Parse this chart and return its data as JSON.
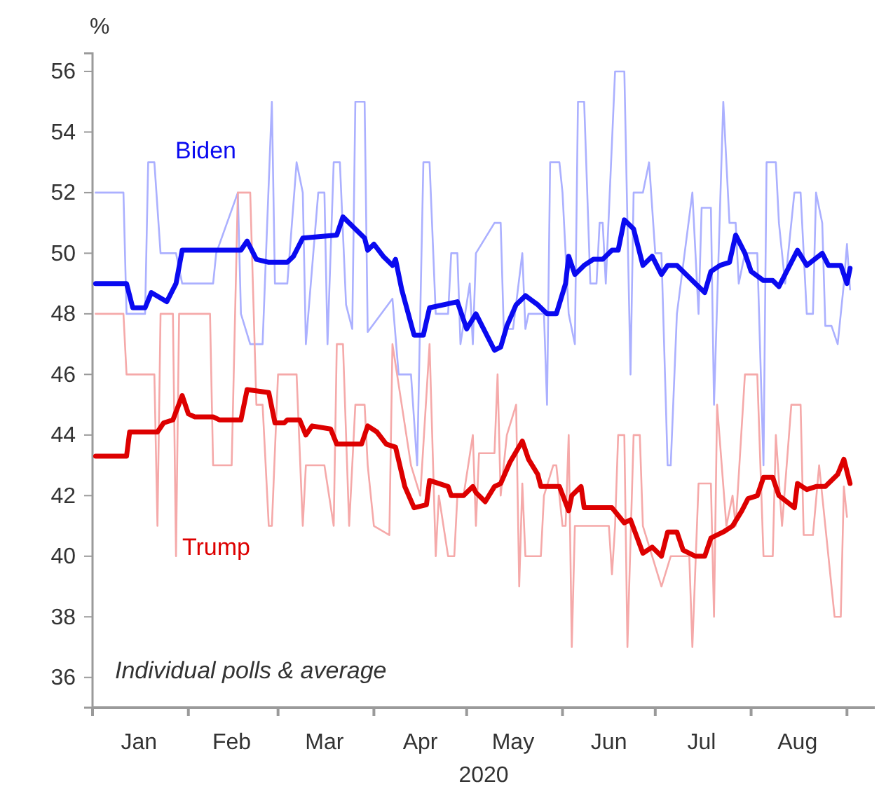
{
  "chart_data": {
    "type": "line",
    "ylabel": "%",
    "xlabel": "2020",
    "annotations": [
      "Individual polls & average"
    ],
    "legend": false,
    "grid": false,
    "marker": "none",
    "line_style": "solid",
    "xlim": [
      "2020-01-01",
      "2020-09-10"
    ],
    "xticks": [
      {
        "value": "2020-01-01",
        "label": null
      },
      {
        "value": "2020-01-16",
        "label": "Jan"
      },
      {
        "value": "2020-02-01",
        "label": null
      },
      {
        "value": "2020-02-15",
        "label": "Feb"
      },
      {
        "value": "2020-03-01",
        "label": null
      },
      {
        "value": "2020-03-16",
        "label": "Mar"
      },
      {
        "value": "2020-04-01",
        "label": null
      },
      {
        "value": "2020-04-16",
        "label": "Apr"
      },
      {
        "value": "2020-05-01",
        "label": null
      },
      {
        "value": "2020-05-16",
        "label": "May"
      },
      {
        "value": "2020-06-01",
        "label": null
      },
      {
        "value": "2020-06-16",
        "label": "Jun"
      },
      {
        "value": "2020-07-01",
        "label": null
      },
      {
        "value": "2020-07-16",
        "label": "Jul"
      },
      {
        "value": "2020-08-01",
        "label": null
      },
      {
        "value": "2020-08-16",
        "label": "Aug"
      },
      {
        "value": "2020-09-01",
        "label": null
      }
    ],
    "ylim": [
      35,
      56.6
    ],
    "yticks": [
      36,
      38,
      40,
      42,
      44,
      46,
      48,
      50,
      52,
      54,
      56
    ],
    "series": [
      {
        "color": "#abb0ff",
        "x": [
          "2020-01-02",
          "2020-01-11",
          "2020-01-12",
          "2020-01-18",
          "2020-01-19",
          "2020-01-21",
          "2020-01-23",
          "2020-01-28",
          "2020-01-30",
          "2020-02-09",
          "2020-02-10",
          "2020-02-17",
          "2020-02-18",
          "2020-02-21",
          "2020-02-25",
          "2020-02-28",
          "2020-02-29",
          "2020-03-04",
          "2020-03-07",
          "2020-03-09",
          "2020-03-10",
          "2020-03-14",
          "2020-03-16",
          "2020-03-17",
          "2020-03-19",
          "2020-03-21",
          "2020-03-23",
          "2020-03-25",
          "2020-03-26",
          "2020-03-29",
          "2020-03-30",
          "2020-04-07",
          "2020-04-09",
          "2020-04-13",
          "2020-04-15",
          "2020-04-17",
          "2020-04-19",
          "2020-04-21",
          "2020-04-25",
          "2020-04-26",
          "2020-04-28",
          "2020-04-29",
          "2020-05-02",
          "2020-05-03",
          "2020-05-04",
          "2020-05-10",
          "2020-05-12",
          "2020-05-13",
          "2020-05-16",
          "2020-05-19",
          "2020-05-20",
          "2020-05-21",
          "2020-05-26",
          "2020-05-27",
          "2020-05-28",
          "2020-05-31",
          "2020-06-01",
          "2020-06-03",
          "2020-06-05",
          "2020-06-06",
          "2020-06-08",
          "2020-06-10",
          "2020-06-12",
          "2020-06-13",
          "2020-06-14",
          "2020-06-15",
          "2020-06-18",
          "2020-06-21",
          "2020-06-23",
          "2020-06-24",
          "2020-06-27",
          "2020-06-29",
          "2020-07-01",
          "2020-07-03",
          "2020-07-05",
          "2020-07-06",
          "2020-07-08",
          "2020-07-13",
          "2020-07-15",
          "2020-07-16",
          "2020-07-19",
          "2020-07-20",
          "2020-07-23",
          "2020-07-25",
          "2020-07-27",
          "2020-07-28",
          "2020-07-30",
          "2020-08-03",
          "2020-08-05",
          "2020-08-06",
          "2020-08-09",
          "2020-08-10",
          "2020-08-12",
          "2020-08-15",
          "2020-08-17",
          "2020-08-19",
          "2020-08-21",
          "2020-08-22",
          "2020-08-24",
          "2020-08-25",
          "2020-08-27",
          "2020-08-29",
          "2020-08-31",
          "2020-09-01",
          "2020-09-02"
        ],
        "values": [
          52,
          52,
          48,
          48,
          53,
          53,
          50,
          50,
          49,
          49,
          50,
          52,
          48,
          47,
          47,
          55,
          49,
          49,
          53,
          52,
          47,
          52,
          52,
          47,
          53,
          53,
          48.3,
          47.5,
          55,
          55,
          47.4,
          48.5,
          46,
          46,
          43,
          53,
          53,
          48,
          48,
          50,
          50,
          47,
          49,
          47,
          50,
          51,
          51,
          47.5,
          47.5,
          50,
          47.5,
          48,
          48,
          45,
          53,
          53,
          52,
          48,
          47,
          55,
          55,
          49,
          49,
          51,
          51,
          49,
          56,
          56,
          46,
          52,
          52,
          53,
          50,
          50,
          43,
          43,
          48,
          52,
          48,
          51.5,
          51.5,
          45,
          55,
          51,
          51,
          49,
          50,
          50,
          43,
          53,
          53,
          51,
          49,
          52,
          52,
          48,
          48,
          52,
          51,
          47.6,
          47.6,
          47,
          49,
          50.3,
          48.8
        ]
      },
      {
        "color": "#f5a9a9",
        "x": [
          "2020-01-02",
          "2020-01-11",
          "2020-01-12",
          "2020-01-21",
          "2020-01-22",
          "2020-01-23",
          "2020-01-27",
          "2020-01-28",
          "2020-01-29",
          "2020-02-08",
          "2020-02-09",
          "2020-02-15",
          "2020-02-17",
          "2020-02-21",
          "2020-02-23",
          "2020-02-25",
          "2020-02-27",
          "2020-02-28",
          "2020-03-01",
          "2020-03-07",
          "2020-03-09",
          "2020-03-10",
          "2020-03-16",
          "2020-03-19",
          "2020-03-20",
          "2020-03-22",
          "2020-03-24",
          "2020-03-26",
          "2020-03-29",
          "2020-03-30",
          "2020-04-01",
          "2020-04-06",
          "2020-04-07",
          "2020-04-13",
          "2020-04-16",
          "2020-04-19",
          "2020-04-21",
          "2020-04-22",
          "2020-04-25",
          "2020-04-27",
          "2020-04-28",
          "2020-04-30",
          "2020-05-03",
          "2020-05-04",
          "2020-05-05",
          "2020-05-10",
          "2020-05-11",
          "2020-05-12",
          "2020-05-14",
          "2020-05-17",
          "2020-05-18",
          "2020-05-19",
          "2020-05-20",
          "2020-05-25",
          "2020-05-26",
          "2020-05-29",
          "2020-05-30",
          "2020-06-01",
          "2020-06-02",
          "2020-06-03",
          "2020-06-04",
          "2020-06-05",
          "2020-06-16",
          "2020-06-17",
          "2020-06-18",
          "2020-06-19",
          "2020-06-21",
          "2020-06-22",
          "2020-06-24",
          "2020-06-26",
          "2020-06-27",
          "2020-07-03",
          "2020-07-06",
          "2020-07-12",
          "2020-07-13",
          "2020-07-15",
          "2020-07-19",
          "2020-07-20",
          "2020-07-21",
          "2020-07-24",
          "2020-07-26",
          "2020-07-27",
          "2020-07-30",
          "2020-08-03",
          "2020-08-05",
          "2020-08-08",
          "2020-08-09",
          "2020-08-11",
          "2020-08-14",
          "2020-08-17",
          "2020-08-18",
          "2020-08-21",
          "2020-08-23",
          "2020-08-25",
          "2020-08-28",
          "2020-08-30",
          "2020-08-31",
          "2020-09-01"
        ],
        "values": [
          48,
          48,
          46,
          46,
          41,
          48,
          48,
          40,
          48,
          48,
          43,
          43,
          52,
          52,
          45,
          45,
          41,
          41,
          46,
          46,
          41,
          43,
          43,
          41,
          47,
          47,
          41,
          45,
          45,
          43,
          41,
          40.7,
          47,
          43,
          42,
          47,
          40,
          42,
          40,
          40,
          42,
          42,
          44,
          41,
          43.4,
          43.4,
          46,
          42,
          44,
          45,
          39,
          42.4,
          40,
          40,
          42,
          43,
          43,
          41,
          41,
          44,
          37,
          41,
          41,
          39.4,
          41,
          44,
          44,
          37,
          44,
          44,
          41,
          39,
          40,
          40,
          37,
          42.4,
          42.4,
          38,
          45,
          41,
          42,
          41,
          46,
          46,
          40,
          40,
          44,
          41,
          45,
          45,
          40.7,
          40.7,
          43,
          41,
          38,
          38,
          42.3,
          41.3
        ]
      },
      {
        "name": "Biden",
        "color": "#0a0af0",
        "x": [
          "2020-01-02",
          "2020-01-12",
          "2020-01-14",
          "2020-01-18",
          "2020-01-20",
          "2020-01-25",
          "2020-01-28",
          "2020-01-30",
          "2020-02-18",
          "2020-02-20",
          "2020-02-23",
          "2020-02-27",
          "2020-03-04",
          "2020-03-06",
          "2020-03-09",
          "2020-03-20",
          "2020-03-22",
          "2020-03-25",
          "2020-03-29",
          "2020-03-30",
          "2020-04-01",
          "2020-04-04",
          "2020-04-07",
          "2020-04-08",
          "2020-04-10",
          "2020-04-14",
          "2020-04-17",
          "2020-04-19",
          "2020-04-28",
          "2020-05-01",
          "2020-05-04",
          "2020-05-10",
          "2020-05-12",
          "2020-05-14",
          "2020-05-17",
          "2020-05-20",
          "2020-05-24",
          "2020-05-27",
          "2020-05-30",
          "2020-06-02",
          "2020-06-03",
          "2020-06-05",
          "2020-06-08",
          "2020-06-11",
          "2020-06-14",
          "2020-06-17",
          "2020-06-19",
          "2020-06-21",
          "2020-06-24",
          "2020-06-27",
          "2020-06-30",
          "2020-07-03",
          "2020-07-05",
          "2020-07-08",
          "2020-07-11",
          "2020-07-14",
          "2020-07-17",
          "2020-07-19",
          "2020-07-22",
          "2020-07-25",
          "2020-07-27",
          "2020-07-30",
          "2020-08-01",
          "2020-08-05",
          "2020-08-08",
          "2020-08-10",
          "2020-08-12",
          "2020-08-16",
          "2020-08-19",
          "2020-08-24",
          "2020-08-26",
          "2020-08-30",
          "2020-09-01",
          "2020-09-02"
        ],
        "values": [
          49,
          49,
          48.2,
          48.2,
          48.7,
          48.4,
          49,
          50.1,
          50.1,
          50.4,
          49.8,
          49.7,
          49.7,
          49.9,
          50.5,
          50.6,
          51.2,
          50.9,
          50.5,
          50.1,
          50.3,
          49.9,
          49.6,
          49.8,
          48.8,
          47.3,
          47.3,
          48.2,
          48.4,
          47.5,
          48,
          46.8,
          46.9,
          47.6,
          48.3,
          48.6,
          48.3,
          48,
          48,
          49,
          49.9,
          49.3,
          49.6,
          49.8,
          49.8,
          50.1,
          50.1,
          51.1,
          50.8,
          49.6,
          49.9,
          49.3,
          49.6,
          49.6,
          49.3,
          49,
          48.7,
          49.4,
          49.6,
          49.7,
          50.6,
          50,
          49.4,
          49.1,
          49.1,
          48.9,
          49.3,
          50.1,
          49.6,
          50,
          49.6,
          49.6,
          49,
          49.5
        ]
      },
      {
        "name": "Trump",
        "color": "#dd0000",
        "x": [
          "2020-01-02",
          "2020-01-12",
          "2020-01-13",
          "2020-01-22",
          "2020-01-24",
          "2020-01-27",
          "2020-01-30",
          "2020-02-01",
          "2020-02-03",
          "2020-02-09",
          "2020-02-11",
          "2020-02-18",
          "2020-02-20",
          "2020-02-27",
          "2020-02-29",
          "2020-03-03",
          "2020-03-04",
          "2020-03-08",
          "2020-03-10",
          "2020-03-12",
          "2020-03-18",
          "2020-03-20",
          "2020-03-26",
          "2020-03-28",
          "2020-03-30",
          "2020-04-02",
          "2020-04-05",
          "2020-04-08",
          "2020-04-11",
          "2020-04-14",
          "2020-04-18",
          "2020-04-19",
          "2020-04-25",
          "2020-04-26",
          "2020-04-30",
          "2020-05-03",
          "2020-05-04",
          "2020-05-07",
          "2020-05-10",
          "2020-05-12",
          "2020-05-15",
          "2020-05-19",
          "2020-05-21",
          "2020-05-24",
          "2020-05-25",
          "2020-05-31",
          "2020-06-03",
          "2020-06-04",
          "2020-06-07",
          "2020-06-08",
          "2020-06-17",
          "2020-06-21",
          "2020-06-23",
          "2020-06-27",
          "2020-06-30",
          "2020-07-03",
          "2020-07-05",
          "2020-07-08",
          "2020-07-10",
          "2020-07-14",
          "2020-07-17",
          "2020-07-19",
          "2020-07-23",
          "2020-07-26",
          "2020-07-29",
          "2020-07-31",
          "2020-08-03",
          "2020-08-05",
          "2020-08-08",
          "2020-08-10",
          "2020-08-15",
          "2020-08-16",
          "2020-08-19",
          "2020-08-22",
          "2020-08-25",
          "2020-08-29",
          "2020-08-31",
          "2020-09-02"
        ],
        "values": [
          43.3,
          43.3,
          44.1,
          44.1,
          44.4,
          44.5,
          45.3,
          44.7,
          44.6,
          44.6,
          44.5,
          44.5,
          45.5,
          45.4,
          44.4,
          44.4,
          44.5,
          44.5,
          44,
          44.3,
          44.2,
          43.7,
          43.7,
          43.7,
          44.3,
          44.1,
          43.7,
          43.6,
          42.3,
          41.6,
          41.7,
          42.5,
          42.3,
          42,
          42,
          42.3,
          42.1,
          41.8,
          42.3,
          42.4,
          43.1,
          43.8,
          43.2,
          42.7,
          42.3,
          42.3,
          41.5,
          42,
          42.3,
          41.6,
          41.6,
          41.1,
          41.2,
          40.1,
          40.3,
          40,
          40.8,
          40.8,
          40.2,
          40,
          40,
          40.6,
          40.8,
          41,
          41.5,
          41.9,
          42,
          42.6,
          42.6,
          42,
          41.6,
          42.4,
          42.2,
          42.3,
          42.3,
          42.7,
          43.2,
          42.4
        ]
      }
    ]
  }
}
